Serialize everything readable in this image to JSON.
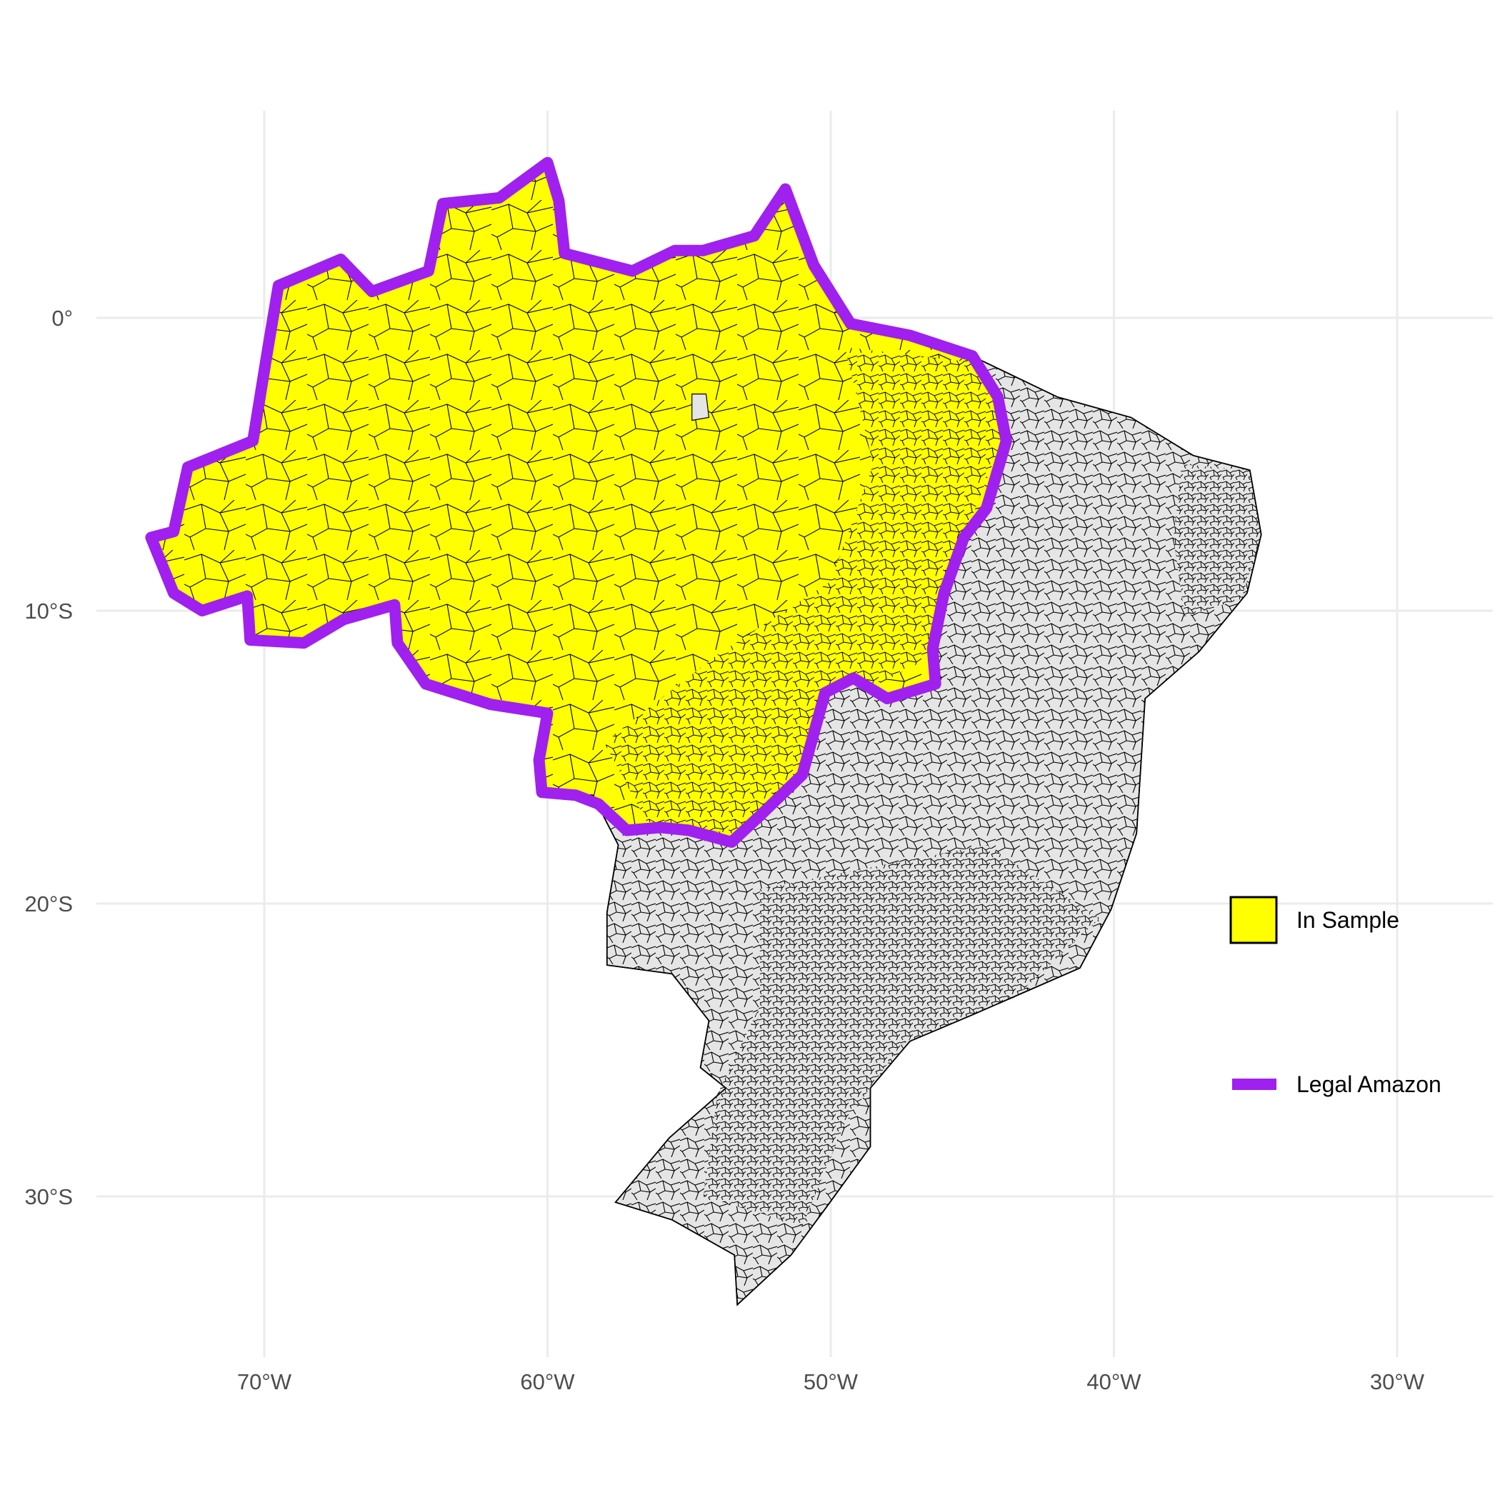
{
  "map": {
    "projection": "geographic (longitude / latitude)",
    "background": "white, light grey graticule",
    "x_ticks": [
      {
        "value": -70,
        "label": "70°W"
      },
      {
        "value": -60,
        "label": "60°W"
      },
      {
        "value": -50,
        "label": "50°W"
      },
      {
        "value": -40,
        "label": "40°W"
      },
      {
        "value": -30,
        "label": "30°W"
      }
    ],
    "y_ticks": [
      {
        "value": 0,
        "label": "0°"
      },
      {
        "value": -10,
        "label": "10°S"
      },
      {
        "value": -20,
        "label": "20°S"
      },
      {
        "value": -30,
        "label": "30°S"
      }
    ],
    "colors": {
      "in_sample_fill": "#ffff00",
      "out_of_sample_fill": "#e5e5e5",
      "municipality_border": "#000000",
      "legal_amazon_outline": "#a020f0",
      "graticule": "#ebebeb"
    },
    "layers": [
      {
        "name": "municipalities",
        "description": "Brazilian municipality polygons; those inside the Legal Amazon are yellow, others grey"
      },
      {
        "name": "legal_amazon_boundary",
        "description": "thick purple outline of the Legal Amazon region"
      }
    ]
  },
  "legend": {
    "placement": "right",
    "items": [
      {
        "label": "In Sample",
        "symbol": "filled-square",
        "color": "#ffff00"
      },
      {
        "label": "Legal Amazon",
        "symbol": "line",
        "color": "#a020f0"
      }
    ]
  }
}
